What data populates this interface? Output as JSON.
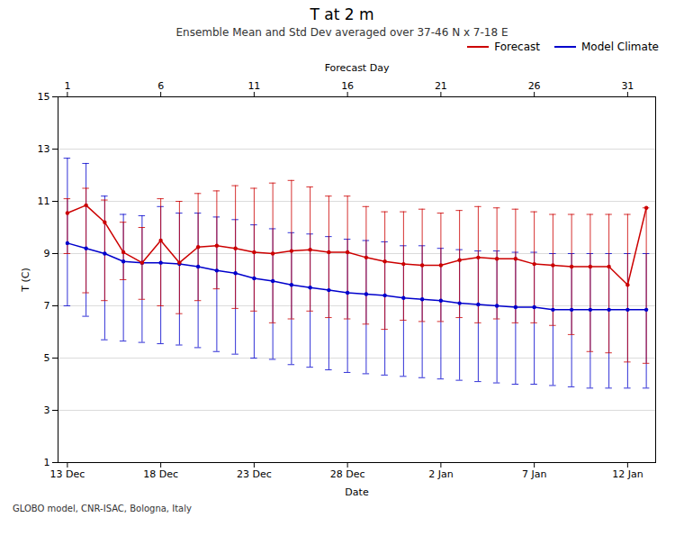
{
  "chart_data": {
    "type": "line",
    "title": "T at 2 m",
    "subtitle": "Ensemble Mean and Std Dev averaged over 37-46 N x 7-18 E",
    "xlabel": "Date",
    "ylabel": "T (C)",
    "top_xlabel": "Forecast Day",
    "caption": "GLOBO model, CNR-ISAC, Bologna, Italy",
    "categories": [
      "13 Dec",
      null,
      null,
      null,
      null,
      "18 Dec",
      null,
      null,
      null,
      null,
      "23 Dec",
      null,
      null,
      null,
      null,
      "28 Dec",
      null,
      null,
      null,
      null,
      "2 Jan",
      null,
      null,
      null,
      null,
      "7 Jan",
      null,
      null,
      null,
      null,
      "12 Jan",
      null
    ],
    "top_categories": [
      "1",
      null,
      null,
      null,
      null,
      "6",
      null,
      null,
      null,
      null,
      "11",
      null,
      null,
      null,
      null,
      "16",
      null,
      null,
      null,
      null,
      "21",
      null,
      null,
      null,
      null,
      "26",
      null,
      null,
      null,
      null,
      "31",
      null
    ],
    "ylim": [
      1,
      15
    ],
    "yticks": [
      1,
      3,
      5,
      7,
      9,
      11,
      13,
      15
    ],
    "grid": true,
    "legend": "upper right",
    "series": [
      {
        "name": "Forecast",
        "color": "#cc0000",
        "marker": "circle",
        "values": [
          10.55,
          10.85,
          10.2,
          9.05,
          8.65,
          9.5,
          8.65,
          9.25,
          9.3,
          9.2,
          9.05,
          9.0,
          9.1,
          9.15,
          9.05,
          9.05,
          8.85,
          8.7,
          8.6,
          8.55,
          8.55,
          8.75,
          8.85,
          8.8,
          8.8,
          8.6,
          8.55,
          8.5,
          8.5,
          8.5,
          7.8,
          10.75
        ],
        "upper": [
          11.1,
          11.5,
          11.05,
          10.2,
          10.0,
          11.1,
          11.0,
          11.3,
          11.4,
          11.6,
          11.5,
          11.7,
          11.8,
          11.55,
          11.2,
          11.2,
          10.8,
          10.6,
          10.6,
          10.7,
          10.55,
          10.65,
          10.8,
          10.75,
          10.7,
          10.6,
          10.5,
          10.5,
          10.5,
          10.5,
          10.5,
          10.75
        ],
        "lower": [
          9.0,
          7.5,
          7.2,
          8.0,
          7.25,
          7.0,
          6.7,
          7.2,
          7.65,
          6.9,
          6.8,
          6.35,
          6.5,
          6.8,
          6.55,
          6.5,
          6.3,
          6.1,
          6.45,
          6.4,
          6.4,
          6.55,
          6.35,
          6.5,
          6.35,
          6.35,
          6.25,
          5.9,
          5.25,
          5.2,
          4.85,
          4.8
        ]
      },
      {
        "name": "Model Climate",
        "color": "#0000cc",
        "marker": "circle",
        "values": [
          9.4,
          9.2,
          9.0,
          8.7,
          8.65,
          8.65,
          8.6,
          8.5,
          8.35,
          8.25,
          8.05,
          7.95,
          7.8,
          7.7,
          7.6,
          7.5,
          7.45,
          7.4,
          7.3,
          7.25,
          7.2,
          7.1,
          7.05,
          7.0,
          6.95,
          6.95,
          6.85,
          6.85,
          6.85,
          6.85,
          6.85,
          6.85
        ],
        "upper": [
          12.65,
          12.45,
          11.2,
          10.5,
          10.45,
          10.8,
          10.55,
          10.55,
          10.4,
          10.3,
          10.1,
          9.95,
          9.8,
          9.75,
          9.65,
          9.55,
          9.5,
          9.45,
          9.3,
          9.3,
          9.2,
          9.15,
          9.1,
          9.1,
          9.05,
          9.05,
          9.0,
          9.0,
          9.0,
          9.0,
          9.0,
          9.0
        ],
        "lower": [
          7.0,
          6.6,
          5.7,
          5.65,
          5.6,
          5.55,
          5.5,
          5.4,
          5.25,
          5.15,
          5.0,
          4.95,
          4.75,
          4.65,
          4.55,
          4.45,
          4.4,
          4.35,
          4.3,
          4.25,
          4.2,
          4.15,
          4.1,
          4.05,
          4.0,
          4.0,
          3.95,
          3.9,
          3.85,
          3.85,
          3.85,
          3.85
        ]
      }
    ]
  }
}
